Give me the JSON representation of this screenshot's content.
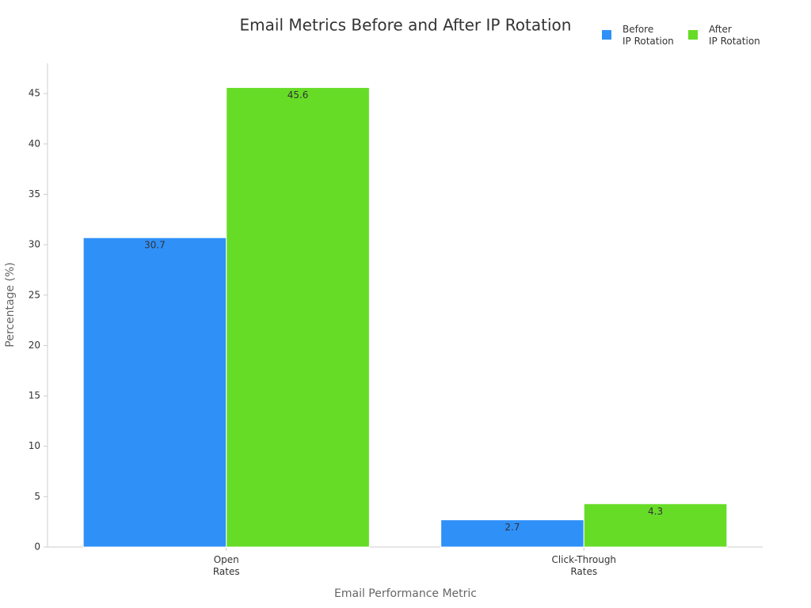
{
  "chart_data": {
    "type": "bar",
    "title": "Email Metrics Before and After IP Rotation",
    "x_label": "Email Performance Metric",
    "y_label": "Percentage (%)",
    "categories": [
      "Open\nRates",
      "Click-Through\nRates"
    ],
    "series": [
      {
        "name": "Before\nIP Rotation",
        "color": "#2f90f8",
        "values": [
          30.7,
          2.7
        ]
      },
      {
        "name": "After\nIP Rotation",
        "color": "#66dc27",
        "values": [
          45.6,
          4.3
        ]
      }
    ],
    "ylim": [
      0,
      48
    ],
    "yticks": [
      0,
      5,
      10,
      15,
      20,
      25,
      30,
      35,
      40,
      45
    ],
    "grid": false,
    "legend": "top-right"
  }
}
